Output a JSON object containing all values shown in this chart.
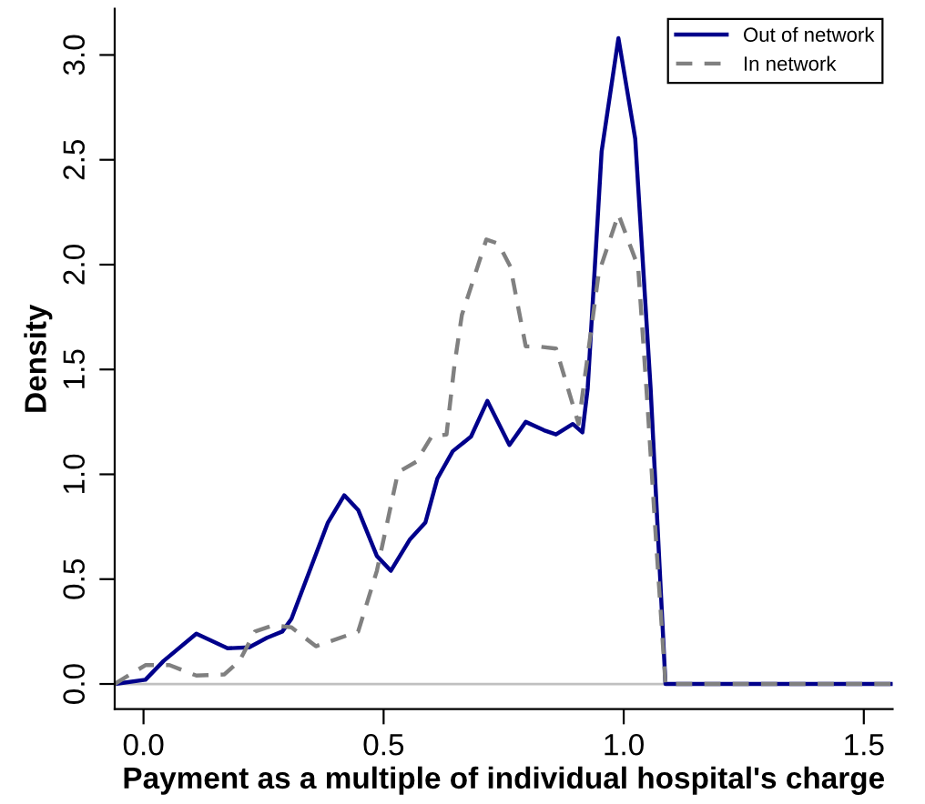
{
  "chart_data": {
    "type": "line",
    "xlabel": "Payment as a multiple of individual hospital's charge",
    "ylabel": "Density",
    "xlim": [
      -0.06,
      1.56
    ],
    "ylim": [
      -0.12,
      3.22
    ],
    "xticks": [
      {
        "value": 0,
        "label": "0.0"
      },
      {
        "value": 0.5,
        "label": "0.5"
      },
      {
        "value": 1,
        "label": "1.0"
      },
      {
        "value": 1.5,
        "label": "1.5"
      }
    ],
    "yticks": [
      {
        "value": 0,
        "label": "0.0"
      },
      {
        "value": 0.5,
        "label": "0.5"
      },
      {
        "value": 1,
        "label": "1.0"
      },
      {
        "value": 1.5,
        "label": "1.5"
      },
      {
        "value": 2,
        "label": "2.0"
      },
      {
        "value": 2.5,
        "label": "2.5"
      },
      {
        "value": 3,
        "label": "3.0"
      }
    ],
    "grid": false,
    "legend": "top right",
    "ref_lines": [
      {
        "axis": "y",
        "value": 0,
        "label": null,
        "color": "#c0c0c0",
        "line_style": "solid"
      }
    ],
    "series": [
      {
        "name": "Out of network",
        "color": "#00008b",
        "line_style": "solid",
        "x": [
          -0.06,
          0.004,
          0.042,
          0.11,
          0.175,
          0.22,
          0.257,
          0.289,
          0.308,
          0.346,
          0.384,
          0.418,
          0.447,
          0.486,
          0.515,
          0.555,
          0.587,
          0.612,
          0.644,
          0.682,
          0.716,
          0.762,
          0.796,
          0.834,
          0.859,
          0.894,
          0.914,
          0.925,
          0.954,
          0.989,
          1.024,
          1.056,
          1.087,
          1.56
        ],
        "values": [
          0,
          0.02,
          0.11,
          0.24,
          0.17,
          0.175,
          0.22,
          0.25,
          0.31,
          0.54,
          0.77,
          0.9,
          0.83,
          0.61,
          0.54,
          0.69,
          0.77,
          0.98,
          1.11,
          1.18,
          1.35,
          1.14,
          1.25,
          1.21,
          1.19,
          1.24,
          1.2,
          1.41,
          2.54,
          3.08,
          2.6,
          1.41,
          0,
          0
        ]
      },
      {
        "name": "In network",
        "color": "#808080",
        "line_style": "dashed",
        "x": [
          -0.06,
          0.004,
          0.054,
          0.11,
          0.168,
          0.2,
          0.232,
          0.27,
          0.308,
          0.359,
          0.447,
          0.486,
          0.53,
          0.568,
          0.6,
          0.631,
          0.648,
          0.663,
          0.714,
          0.739,
          0.764,
          0.796,
          0.821,
          0.859,
          0.906,
          0.948,
          0.989,
          1.03,
          1.049,
          1.068,
          1.087,
          1.56
        ],
        "values": [
          0,
          0.09,
          0.09,
          0.04,
          0.045,
          0.11,
          0.25,
          0.28,
          0.27,
          0.18,
          0.25,
          0.54,
          1.01,
          1.06,
          1.18,
          1.19,
          1.53,
          1.76,
          2.12,
          2.1,
          1.99,
          1.61,
          1.61,
          1.6,
          1.24,
          1.96,
          2.24,
          1.99,
          1.35,
          0.66,
          0,
          0
        ]
      }
    ]
  }
}
